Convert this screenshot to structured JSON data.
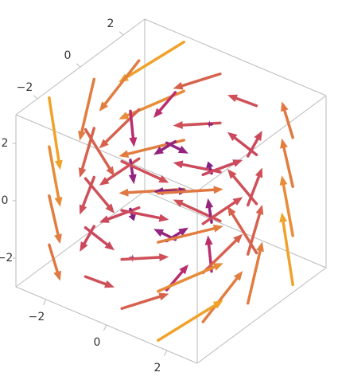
{
  "chart_data": {
    "type": "vector3d",
    "xlim": [
      -3,
      3
    ],
    "ylim": [
      -3,
      3
    ],
    "zlim": [
      -3,
      3
    ],
    "xticks": [
      {
        "value": -2,
        "label": "−2"
      },
      0,
      2
    ],
    "yticks": [
      {
        "value": -2,
        "label": "−2"
      },
      0,
      2
    ],
    "zticks": [
      {
        "value": -2,
        "label": "−2"
      },
      0,
      2
    ],
    "grid": [
      -2.25,
      -0.75,
      0.75,
      2.25
    ],
    "colors": [
      "#3a0ca3",
      "#c2306b",
      "#f0a22a"
    ],
    "vectors": [
      [
        2.25,
        -2.25,
        0
      ],
      [
        2.25,
        -2.25,
        -0.75
      ],
      [
        2.25,
        -2.25,
        -1.5
      ],
      [
        2.25,
        -2.25,
        -2.25
      ],
      [
        0.75,
        -2.25,
        0
      ],
      [
        0.75,
        -2.25,
        -0.75
      ],
      [
        0.75,
        -2.25,
        -1.5
      ],
      [
        0.75,
        -2.25,
        -2.25
      ],
      [
        -0.75,
        -2.25,
        0
      ],
      [
        -0.75,
        -2.25,
        -0.75
      ],
      [
        -0.75,
        -2.25,
        -1.5
      ],
      [
        -0.75,
        -2.25,
        -2.25
      ],
      [
        -2.25,
        -2.25,
        0
      ],
      [
        -2.25,
        -2.25,
        -0.75
      ],
      [
        -2.25,
        -2.25,
        -1.5
      ],
      [
        -2.25,
        -2.25,
        -2.25
      ],
      [
        2.25,
        -0.75,
        0.75
      ],
      [
        2.25,
        -0.75,
        0
      ],
      [
        2.25,
        -0.75,
        -0.75
      ],
      [
        2.25,
        -0.75,
        -1.5
      ],
      [
        0.75,
        -0.75,
        0.75
      ],
      [
        0.75,
        -0.75,
        0
      ],
      [
        0.75,
        -0.75,
        -0.75
      ],
      [
        0.75,
        -0.75,
        -1.5
      ],
      [
        -0.75,
        -0.75,
        0.75
      ],
      [
        -0.75,
        -0.75,
        0
      ],
      [
        -0.75,
        -0.75,
        -0.75
      ],
      [
        -0.75,
        -0.75,
        -1.5
      ],
      [
        -2.25,
        -0.75,
        0.75
      ],
      [
        -2.25,
        -0.75,
        0
      ],
      [
        -2.25,
        -0.75,
        -0.75
      ],
      [
        -2.25,
        -0.75,
        -1.5
      ],
      [
        2.25,
        0.75,
        1.5
      ],
      [
        2.25,
        0.75,
        0.75
      ],
      [
        2.25,
        0.75,
        0
      ],
      [
        2.25,
        0.75,
        -0.75
      ],
      [
        0.75,
        0.75,
        1.5
      ],
      [
        0.75,
        0.75,
        0.75
      ],
      [
        0.75,
        0.75,
        0
      ],
      [
        0.75,
        0.75,
        -0.75
      ],
      [
        -0.75,
        0.75,
        1.5
      ],
      [
        -0.75,
        0.75,
        0.75
      ],
      [
        -0.75,
        0.75,
        0
      ],
      [
        -0.75,
        0.75,
        -0.75
      ],
      [
        -2.25,
        0.75,
        1.5
      ],
      [
        -2.25,
        0.75,
        0.75
      ],
      [
        -2.25,
        0.75,
        0
      ],
      [
        -2.25,
        0.75,
        -0.75
      ],
      [
        2.25,
        2.25,
        2.25
      ],
      [
        2.25,
        2.25,
        1.5
      ],
      [
        2.25,
        2.25,
        0.75
      ],
      [
        2.25,
        2.25,
        0
      ],
      [
        0.75,
        2.25,
        2.25
      ],
      [
        0.75,
        2.25,
        1.5
      ],
      [
        0.75,
        2.25,
        0.75
      ],
      [
        0.75,
        2.25,
        0
      ],
      [
        -0.75,
        2.25,
        2.25
      ],
      [
        -0.75,
        2.25,
        1.5
      ],
      [
        -0.75,
        2.25,
        0.75
      ],
      [
        -0.75,
        2.25,
        0
      ],
      [
        -2.25,
        2.25,
        2.25
      ],
      [
        -2.25,
        2.25,
        1.5
      ],
      [
        -2.25,
        2.25,
        0.75
      ],
      [
        -2.25,
        2.25,
        0
      ]
    ]
  }
}
